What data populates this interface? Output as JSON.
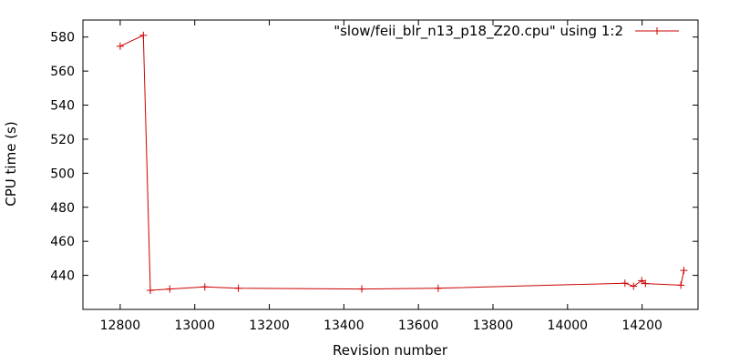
{
  "chart_data": {
    "type": "line",
    "title": "",
    "xlabel": "Revision number",
    "ylabel": "CPU time (s)",
    "xlim": [
      12700,
      14350
    ],
    "ylim": [
      420,
      590
    ],
    "xticks": [
      12800,
      13000,
      13200,
      13400,
      13600,
      13800,
      14000,
      14200
    ],
    "yticks": [
      440,
      460,
      480,
      500,
      520,
      540,
      560,
      580
    ],
    "grid": false,
    "legend_position": "top-right",
    "series": [
      {
        "name": "\"slow/feii_blr_n13_p18_Z20.cpu\" using 1:2",
        "color": "#cc0000",
        "marker": "plus",
        "points": [
          [
            12800,
            574.6
          ],
          [
            12862,
            581.0
          ],
          [
            12881,
            431.2
          ],
          [
            12933,
            432.0
          ],
          [
            13027,
            433.2
          ],
          [
            13117,
            432.4
          ],
          [
            13448,
            432.0
          ],
          [
            13653,
            432.4
          ],
          [
            14154,
            435.4
          ],
          [
            14177,
            433.6
          ],
          [
            14199,
            436.9
          ],
          [
            14209,
            435.2
          ],
          [
            14304,
            434.2
          ],
          [
            14312,
            442.9
          ]
        ]
      }
    ]
  }
}
